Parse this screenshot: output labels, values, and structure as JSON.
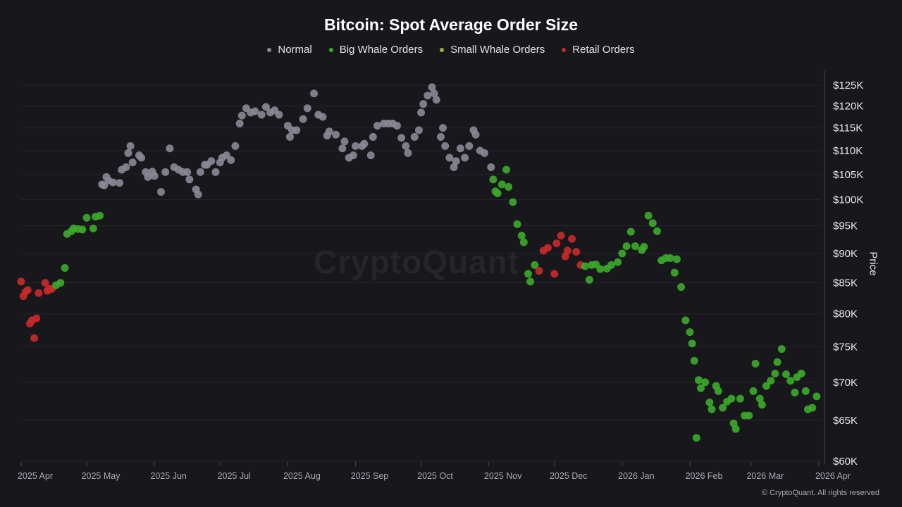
{
  "chart_data": {
    "type": "scatter",
    "title": "Bitcoin: Spot Average Order Size",
    "ylabel": "Price",
    "yscale": "log",
    "ylim": [
      60000,
      125000
    ],
    "xlim": [
      "2025-04-01",
      "2026-04-01"
    ],
    "grid": true,
    "legend_placement": "top-center",
    "y_ticks": [
      {
        "value": 125000,
        "label": "$125K"
      },
      {
        "value": 120000,
        "label": "$120K"
      },
      {
        "value": 115000,
        "label": "$115K"
      },
      {
        "value": 110000,
        "label": "$110K"
      },
      {
        "value": 105000,
        "label": "$105K"
      },
      {
        "value": 100000,
        "label": "$100K"
      },
      {
        "value": 95000,
        "label": "$95K"
      },
      {
        "value": 90000,
        "label": "$90K"
      },
      {
        "value": 85000,
        "label": "$85K"
      },
      {
        "value": 80000,
        "label": "$80K"
      },
      {
        "value": 75000,
        "label": "$75K"
      },
      {
        "value": 70000,
        "label": "$70K"
      },
      {
        "value": 65000,
        "label": "$65K"
      },
      {
        "value": 60000,
        "label": "$60K"
      }
    ],
    "x_ticks": [
      {
        "date": "2025-04-01",
        "label": "2025 Apr"
      },
      {
        "date": "2025-05-01",
        "label": "2025 May"
      },
      {
        "date": "2025-06-01",
        "label": "2025 Jun"
      },
      {
        "date": "2025-07-01",
        "label": "2025 Jul"
      },
      {
        "date": "2025-08-01",
        "label": "2025 Aug"
      },
      {
        "date": "2025-09-01",
        "label": "2025 Sep"
      },
      {
        "date": "2025-10-01",
        "label": "2025 Oct"
      },
      {
        "date": "2025-11-01",
        "label": "2025 Nov"
      },
      {
        "date": "2025-12-01",
        "label": "2025 Dec"
      },
      {
        "date": "2026-01-01",
        "label": "2026 Jan"
      },
      {
        "date": "2026-02-01",
        "label": "2026 Feb"
      },
      {
        "date": "2026-03-01",
        "label": "2026 Mar"
      },
      {
        "date": "2026-04-01",
        "label": "2026 Apr"
      }
    ],
    "series": [
      {
        "key": "normal",
        "name": "Normal",
        "color": "#8a8a98"
      },
      {
        "key": "big",
        "name": "Big Whale Orders",
        "color": "#3cab2a"
      },
      {
        "key": "small",
        "name": "Small Whale Orders",
        "color": "#a5a84a"
      },
      {
        "key": "retail",
        "name": "Retail Orders",
        "color": "#c92a2a"
      }
    ],
    "points": [
      [
        "2025-04-01",
        85200,
        "retail"
      ],
      [
        "2025-04-02",
        82800,
        "retail"
      ],
      [
        "2025-04-03",
        83500,
        "retail"
      ],
      [
        "2025-04-04",
        83800,
        "retail"
      ],
      [
        "2025-04-05",
        78500,
        "retail"
      ],
      [
        "2025-04-06",
        79000,
        "retail"
      ],
      [
        "2025-04-07",
        76300,
        "retail"
      ],
      [
        "2025-04-08",
        79300,
        "retail"
      ],
      [
        "2025-04-09",
        83300,
        "retail"
      ],
      [
        "2025-04-12",
        85000,
        "retail"
      ],
      [
        "2025-04-13",
        83700,
        "retail"
      ],
      [
        "2025-04-14",
        84000,
        "retail"
      ],
      [
        "2025-04-15",
        84000,
        "retail"
      ],
      [
        "2025-04-17",
        84600,
        "big"
      ],
      [
        "2025-04-19",
        85000,
        "big"
      ],
      [
        "2025-04-21",
        87500,
        "big"
      ],
      [
        "2025-04-22",
        93500,
        "big"
      ],
      [
        "2025-04-24",
        94000,
        "big"
      ],
      [
        "2025-04-25",
        94500,
        "big"
      ],
      [
        "2025-04-27",
        94400,
        "big"
      ],
      [
        "2025-04-29",
        94300,
        "big"
      ],
      [
        "2025-05-01",
        96500,
        "big"
      ],
      [
        "2025-05-04",
        94500,
        "big"
      ],
      [
        "2025-05-05",
        96700,
        "big"
      ],
      [
        "2025-05-07",
        96900,
        "big"
      ],
      [
        "2025-05-08",
        103000,
        "normal"
      ],
      [
        "2025-05-09",
        102800,
        "normal"
      ],
      [
        "2025-05-10",
        104500,
        "normal"
      ],
      [
        "2025-05-11",
        103800,
        "normal"
      ],
      [
        "2025-05-13",
        103400,
        "normal"
      ],
      [
        "2025-05-16",
        103300,
        "normal"
      ],
      [
        "2025-05-17",
        106000,
        "normal"
      ],
      [
        "2025-05-19",
        106500,
        "normal"
      ],
      [
        "2025-05-20",
        109500,
        "normal"
      ],
      [
        "2025-05-21",
        111000,
        "normal"
      ],
      [
        "2025-05-22",
        107500,
        "normal"
      ],
      [
        "2025-05-25",
        109000,
        "normal"
      ],
      [
        "2025-05-26",
        108500,
        "normal"
      ],
      [
        "2025-05-28",
        105500,
        "normal"
      ],
      [
        "2025-05-29",
        104500,
        "normal"
      ],
      [
        "2025-05-31",
        105600,
        "normal"
      ],
      [
        "2025-06-01",
        104700,
        "normal"
      ],
      [
        "2025-06-04",
        101500,
        "normal"
      ],
      [
        "2025-06-06",
        105500,
        "normal"
      ],
      [
        "2025-06-08",
        110500,
        "normal"
      ],
      [
        "2025-06-10",
        106500,
        "normal"
      ],
      [
        "2025-06-12",
        106000,
        "normal"
      ],
      [
        "2025-06-14",
        105500,
        "normal"
      ],
      [
        "2025-06-16",
        105500,
        "normal"
      ],
      [
        "2025-06-17",
        104000,
        "normal"
      ],
      [
        "2025-06-20",
        102000,
        "normal"
      ],
      [
        "2025-06-21",
        101000,
        "normal"
      ],
      [
        "2025-06-22",
        105500,
        "normal"
      ],
      [
        "2025-06-24",
        107000,
        "normal"
      ],
      [
        "2025-06-25",
        107000,
        "normal"
      ],
      [
        "2025-06-27",
        107800,
        "normal"
      ],
      [
        "2025-06-29",
        105500,
        "normal"
      ],
      [
        "2025-07-01",
        107500,
        "normal"
      ],
      [
        "2025-07-02",
        108500,
        "normal"
      ],
      [
        "2025-07-04",
        109000,
        "normal"
      ],
      [
        "2025-07-06",
        108000,
        "normal"
      ],
      [
        "2025-07-08",
        111000,
        "normal"
      ],
      [
        "2025-07-10",
        116000,
        "normal"
      ],
      [
        "2025-07-11",
        117800,
        "normal"
      ],
      [
        "2025-07-13",
        119500,
        "normal"
      ],
      [
        "2025-07-15",
        118500,
        "normal"
      ],
      [
        "2025-07-17",
        118800,
        "normal"
      ],
      [
        "2025-07-20",
        118000,
        "normal"
      ],
      [
        "2025-07-22",
        119800,
        "normal"
      ],
      [
        "2025-07-24",
        118500,
        "normal"
      ],
      [
        "2025-07-26",
        119000,
        "normal"
      ],
      [
        "2025-07-28",
        118000,
        "normal"
      ],
      [
        "2025-08-01",
        115500,
        "normal"
      ],
      [
        "2025-08-02",
        113000,
        "normal"
      ],
      [
        "2025-08-03",
        114500,
        "normal"
      ],
      [
        "2025-08-05",
        114500,
        "normal"
      ],
      [
        "2025-08-08",
        117000,
        "normal"
      ],
      [
        "2025-08-10",
        119500,
        "normal"
      ],
      [
        "2025-08-13",
        123000,
        "normal"
      ],
      [
        "2025-08-15",
        118000,
        "normal"
      ],
      [
        "2025-08-17",
        117500,
        "normal"
      ],
      [
        "2025-08-19",
        113300,
        "normal"
      ],
      [
        "2025-08-20",
        114200,
        "normal"
      ],
      [
        "2025-08-23",
        113500,
        "normal"
      ],
      [
        "2025-08-26",
        110500,
        "normal"
      ],
      [
        "2025-08-27",
        112000,
        "normal"
      ],
      [
        "2025-08-29",
        108500,
        "normal"
      ],
      [
        "2025-08-31",
        109000,
        "normal"
      ],
      [
        "2025-09-01",
        111000,
        "normal"
      ],
      [
        "2025-09-04",
        111000,
        "normal"
      ],
      [
        "2025-09-05",
        111500,
        "normal"
      ],
      [
        "2025-09-08",
        109000,
        "normal"
      ],
      [
        "2025-09-09",
        113000,
        "normal"
      ],
      [
        "2025-09-11",
        115500,
        "normal"
      ],
      [
        "2025-09-14",
        116000,
        "normal"
      ],
      [
        "2025-09-16",
        116000,
        "normal"
      ],
      [
        "2025-09-18",
        116000,
        "normal"
      ],
      [
        "2025-09-20",
        115500,
        "normal"
      ],
      [
        "2025-09-22",
        112800,
        "normal"
      ],
      [
        "2025-09-24",
        111000,
        "normal"
      ],
      [
        "2025-09-25",
        109500,
        "normal"
      ],
      [
        "2025-09-28",
        113000,
        "normal"
      ],
      [
        "2025-09-30",
        114500,
        "normal"
      ],
      [
        "2025-10-01",
        118500,
        "normal"
      ],
      [
        "2025-10-02",
        120500,
        "normal"
      ],
      [
        "2025-10-04",
        122500,
        "normal"
      ],
      [
        "2025-10-06",
        124500,
        "normal"
      ],
      [
        "2025-10-07",
        123000,
        "normal"
      ],
      [
        "2025-10-08",
        121500,
        "normal"
      ],
      [
        "2025-10-10",
        113000,
        "normal"
      ],
      [
        "2025-10-11",
        115000,
        "normal"
      ],
      [
        "2025-10-12",
        111000,
        "normal"
      ],
      [
        "2025-10-14",
        108500,
        "normal"
      ],
      [
        "2025-10-16",
        106500,
        "normal"
      ],
      [
        "2025-10-17",
        107800,
        "normal"
      ],
      [
        "2025-10-19",
        110500,
        "normal"
      ],
      [
        "2025-10-21",
        108500,
        "normal"
      ],
      [
        "2025-10-23",
        111000,
        "normal"
      ],
      [
        "2025-10-25",
        114500,
        "normal"
      ],
      [
        "2025-10-26",
        113500,
        "normal"
      ],
      [
        "2025-10-28",
        110000,
        "normal"
      ],
      [
        "2025-10-30",
        109500,
        "normal"
      ],
      [
        "2025-11-02",
        106500,
        "normal"
      ],
      [
        "2025-11-03",
        104000,
        "big"
      ],
      [
        "2025-11-04",
        101600,
        "big"
      ],
      [
        "2025-11-05",
        101200,
        "big"
      ],
      [
        "2025-11-07",
        103000,
        "big"
      ],
      [
        "2025-11-09",
        106000,
        "big"
      ],
      [
        "2025-11-10",
        102500,
        "big"
      ],
      [
        "2025-11-12",
        99500,
        "big"
      ],
      [
        "2025-11-14",
        95300,
        "big"
      ],
      [
        "2025-11-16",
        93200,
        "big"
      ],
      [
        "2025-11-17",
        92000,
        "big"
      ],
      [
        "2025-11-19",
        86500,
        "big"
      ],
      [
        "2025-11-20",
        85200,
        "big"
      ],
      [
        "2025-11-22",
        88000,
        "big"
      ],
      [
        "2025-11-24",
        87000,
        "retail"
      ],
      [
        "2025-11-26",
        90500,
        "retail"
      ],
      [
        "2025-11-28",
        91000,
        "retail"
      ],
      [
        "2025-12-01",
        86500,
        "retail"
      ],
      [
        "2025-12-02",
        91800,
        "retail"
      ],
      [
        "2025-12-04",
        93200,
        "retail"
      ],
      [
        "2025-12-06",
        89500,
        "retail"
      ],
      [
        "2025-12-07",
        90500,
        "retail"
      ],
      [
        "2025-12-09",
        92600,
        "retail"
      ],
      [
        "2025-12-11",
        90300,
        "retail"
      ],
      [
        "2025-12-13",
        88000,
        "retail"
      ],
      [
        "2025-12-15",
        87800,
        "big"
      ],
      [
        "2025-12-17",
        85500,
        "big"
      ],
      [
        "2025-12-18",
        88000,
        "big"
      ],
      [
        "2025-12-20",
        88100,
        "big"
      ],
      [
        "2025-12-22",
        87300,
        "big"
      ],
      [
        "2025-12-25",
        87400,
        "big"
      ],
      [
        "2025-12-27",
        88000,
        "big"
      ],
      [
        "2025-12-30",
        88500,
        "big"
      ],
      [
        "2026-01-01",
        90000,
        "big"
      ],
      [
        "2026-01-03",
        91300,
        "big"
      ],
      [
        "2026-01-05",
        93900,
        "big"
      ],
      [
        "2026-01-07",
        91300,
        "big"
      ],
      [
        "2026-01-10",
        90600,
        "big"
      ],
      [
        "2026-01-11",
        91200,
        "big"
      ],
      [
        "2026-01-13",
        96900,
        "big"
      ],
      [
        "2026-01-15",
        95500,
        "big"
      ],
      [
        "2026-01-17",
        94000,
        "big"
      ],
      [
        "2026-01-19",
        88800,
        "big"
      ],
      [
        "2026-01-21",
        89200,
        "big"
      ],
      [
        "2026-01-23",
        89200,
        "big"
      ],
      [
        "2026-01-25",
        86700,
        "big"
      ],
      [
        "2026-01-26",
        89000,
        "big"
      ],
      [
        "2026-01-28",
        84300,
        "big"
      ],
      [
        "2026-01-30",
        79000,
        "big"
      ],
      [
        "2026-02-01",
        77200,
        "big"
      ],
      [
        "2026-02-02",
        75500,
        "big"
      ],
      [
        "2026-02-03",
        73000,
        "big"
      ],
      [
        "2026-02-04",
        62800,
        "big"
      ],
      [
        "2026-02-05",
        70300,
        "big"
      ],
      [
        "2026-02-06",
        69200,
        "big"
      ],
      [
        "2026-02-08",
        70000,
        "big"
      ],
      [
        "2026-02-10",
        67300,
        "big"
      ],
      [
        "2026-02-11",
        66400,
        "big"
      ],
      [
        "2026-02-13",
        69500,
        "big"
      ],
      [
        "2026-02-14",
        68800,
        "big"
      ],
      [
        "2026-02-16",
        66600,
        "big"
      ],
      [
        "2026-02-18",
        67400,
        "big"
      ],
      [
        "2026-02-20",
        67800,
        "big"
      ],
      [
        "2026-02-21",
        64600,
        "big"
      ],
      [
        "2026-02-22",
        63900,
        "big"
      ],
      [
        "2026-02-24",
        67800,
        "big"
      ],
      [
        "2026-02-26",
        65600,
        "big"
      ],
      [
        "2026-02-28",
        65600,
        "big"
      ],
      [
        "2026-03-02",
        68800,
        "big"
      ],
      [
        "2026-03-03",
        72600,
        "big"
      ],
      [
        "2026-03-05",
        67800,
        "big"
      ],
      [
        "2026-03-06",
        67000,
        "big"
      ],
      [
        "2026-03-08",
        69500,
        "big"
      ],
      [
        "2026-03-10",
        70200,
        "big"
      ],
      [
        "2026-03-12",
        71200,
        "big"
      ],
      [
        "2026-03-13",
        72800,
        "big"
      ],
      [
        "2026-03-15",
        74700,
        "big"
      ],
      [
        "2026-03-17",
        71100,
        "big"
      ],
      [
        "2026-03-19",
        70200,
        "big"
      ],
      [
        "2026-03-21",
        68600,
        "big"
      ],
      [
        "2026-03-22",
        70700,
        "big"
      ],
      [
        "2026-03-24",
        71200,
        "big"
      ],
      [
        "2026-03-26",
        68800,
        "big"
      ],
      [
        "2026-03-27",
        66400,
        "big"
      ],
      [
        "2026-03-29",
        66600,
        "big"
      ],
      [
        "2026-03-31",
        68100,
        "big"
      ]
    ]
  },
  "watermark": "CryptoQuant",
  "copyright": "© CryptoQuant. All rights reserved"
}
